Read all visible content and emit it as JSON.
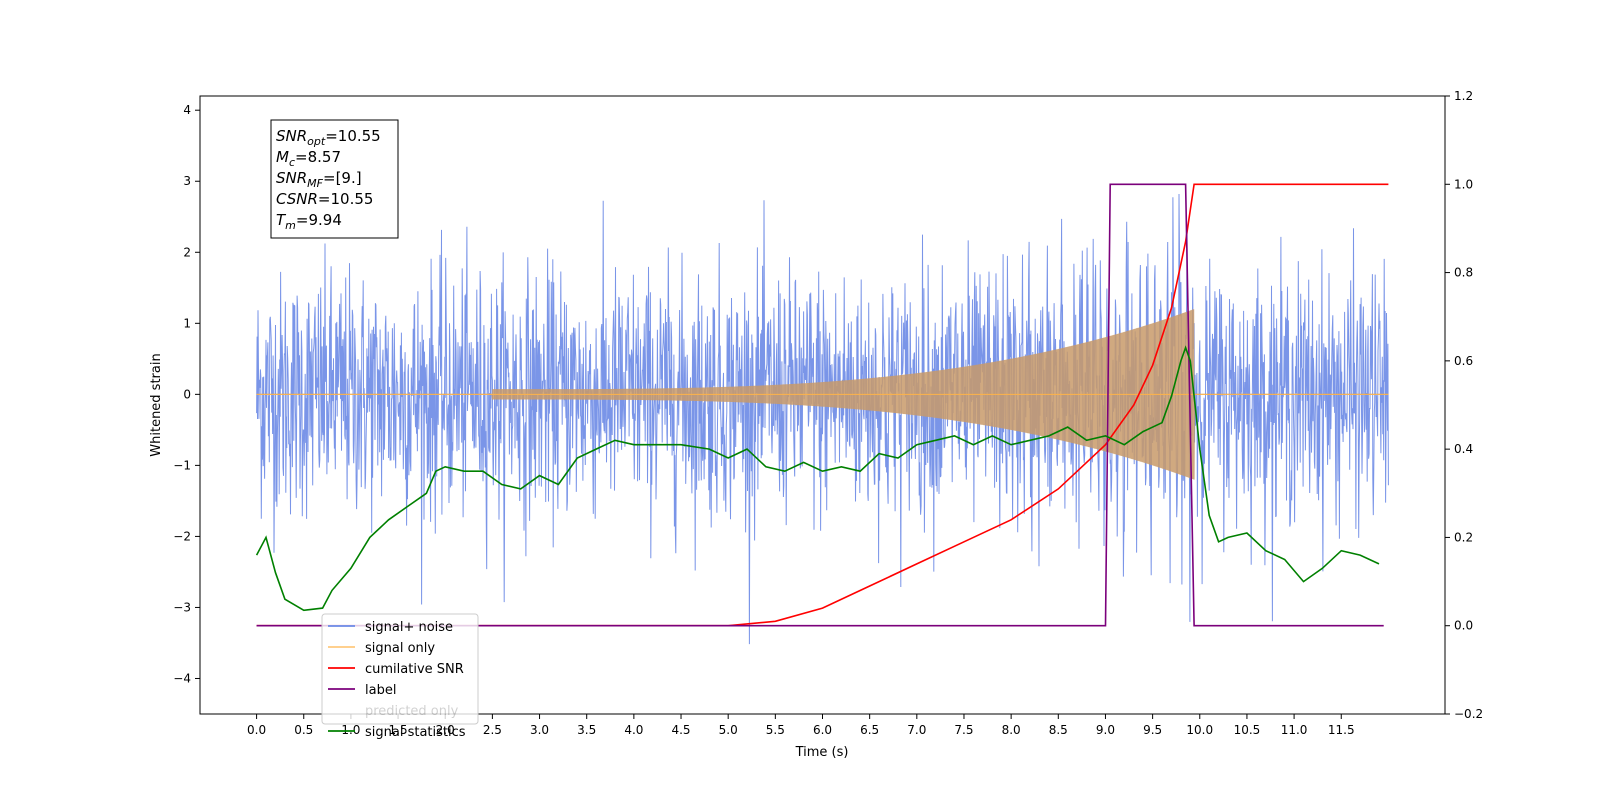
{
  "chart_data": {
    "type": "line",
    "xlabel": "Time (s)",
    "ylabel": "Whitened strain",
    "xlim": [
      -0.6,
      12.6
    ],
    "ylim_left": [
      -4.5,
      4.2
    ],
    "ylim_right": [
      -0.2,
      1.2
    ],
    "x_ticks": [
      "0.0",
      "0.5",
      "1.0",
      "1.5",
      "2.0",
      "2.5",
      "3.0",
      "3.5",
      "4.0",
      "4.5",
      "5.0",
      "5.5",
      "6.0",
      "6.5",
      "7.0",
      "7.5",
      "8.0",
      "8.5",
      "9.0",
      "9.5",
      "10.0",
      "10.5",
      "11.0",
      "11.5"
    ],
    "y_ticks_left": [
      "4",
      "3",
      "2",
      "1",
      "0",
      "−1",
      "−2",
      "−3",
      "−4"
    ],
    "y_ticks_right": [
      "1.2",
      "1.0",
      "0.8",
      "0.6",
      "0.4",
      "0.2",
      "0.0",
      "−0.2"
    ],
    "grid": false,
    "legend_position": "lower-left",
    "annotation": {
      "lines": [
        {
          "label_main": "SNR",
          "label_sub": "opt",
          "value": "=10.55"
        },
        {
          "label_main": "M",
          "label_sub": "c",
          "value": "=8.57"
        },
        {
          "label_main": "SNR",
          "label_sub": "MF",
          "value": "=[9.]"
        },
        {
          "label_main": "CSNR",
          "label_sub": "",
          "value": "=10.55"
        },
        {
          "label_main": "T",
          "label_sub": "m",
          "value": "=9.94"
        }
      ]
    },
    "series": [
      {
        "name": "signal+ noise",
        "color": "#6b8ae6",
        "axis": "left",
        "noise_sigma": 0.85,
        "x_range": [
          0.0,
          12.0
        ],
        "chirp_end": 9.94,
        "chirp_peak_amplitude": 1.2
      },
      {
        "name": "signal only",
        "color": "#ffb347",
        "axis": "left",
        "x_range": [
          0.0,
          12.0
        ],
        "chirp_start": 2.5,
        "chirp_end": 9.94,
        "chirp_peak_amplitude": 1.2
      },
      {
        "name": "cumilative SNR",
        "color": "#ff0000",
        "axis": "right",
        "points": [
          [
            0,
            0
          ],
          [
            5.0,
            0
          ],
          [
            5.5,
            0.01
          ],
          [
            6.0,
            0.04
          ],
          [
            6.5,
            0.09
          ],
          [
            7.0,
            0.14
          ],
          [
            7.5,
            0.19
          ],
          [
            8.0,
            0.24
          ],
          [
            8.5,
            0.31
          ],
          [
            9.0,
            0.41
          ],
          [
            9.3,
            0.5
          ],
          [
            9.5,
            0.59
          ],
          [
            9.7,
            0.72
          ],
          [
            9.85,
            0.87
          ],
          [
            9.94,
            1.0
          ],
          [
            12.0,
            1.0
          ]
        ]
      },
      {
        "name": "label",
        "color": "#7b007b",
        "axis": "right",
        "points": [
          [
            0,
            0
          ],
          [
            9.0,
            0
          ],
          [
            9.05,
            1.0
          ],
          [
            9.85,
            1.0
          ],
          [
            9.94,
            0
          ],
          [
            11.95,
            0
          ]
        ]
      },
      {
        "name": "predicted only",
        "color": "#7b007b",
        "axis": "right",
        "hidden_line": true
      },
      {
        "name": "signal statistics",
        "color": "#008000",
        "axis": "right",
        "points": [
          [
            0,
            0.16
          ],
          [
            0.1,
            0.2
          ],
          [
            0.2,
            0.12
          ],
          [
            0.3,
            0.06
          ],
          [
            0.5,
            0.035
          ],
          [
            0.7,
            0.04
          ],
          [
            0.8,
            0.08
          ],
          [
            1.0,
            0.13
          ],
          [
            1.2,
            0.2
          ],
          [
            1.4,
            0.24
          ],
          [
            1.6,
            0.27
          ],
          [
            1.8,
            0.3
          ],
          [
            1.9,
            0.35
          ],
          [
            2.0,
            0.36
          ],
          [
            2.2,
            0.35
          ],
          [
            2.4,
            0.35
          ],
          [
            2.6,
            0.32
          ],
          [
            2.8,
            0.31
          ],
          [
            3.0,
            0.34
          ],
          [
            3.2,
            0.32
          ],
          [
            3.4,
            0.38
          ],
          [
            3.6,
            0.4
          ],
          [
            3.8,
            0.42
          ],
          [
            4.0,
            0.41
          ],
          [
            4.2,
            0.41
          ],
          [
            4.5,
            0.41
          ],
          [
            4.8,
            0.4
          ],
          [
            5.0,
            0.38
          ],
          [
            5.2,
            0.4
          ],
          [
            5.4,
            0.36
          ],
          [
            5.6,
            0.35
          ],
          [
            5.8,
            0.37
          ],
          [
            6.0,
            0.35
          ],
          [
            6.2,
            0.36
          ],
          [
            6.4,
            0.35
          ],
          [
            6.6,
            0.39
          ],
          [
            6.8,
            0.38
          ],
          [
            7.0,
            0.41
          ],
          [
            7.2,
            0.42
          ],
          [
            7.4,
            0.43
          ],
          [
            7.6,
            0.41
          ],
          [
            7.8,
            0.43
          ],
          [
            8.0,
            0.41
          ],
          [
            8.2,
            0.42
          ],
          [
            8.4,
            0.43
          ],
          [
            8.6,
            0.45
          ],
          [
            8.8,
            0.42
          ],
          [
            9.0,
            0.43
          ],
          [
            9.2,
            0.41
          ],
          [
            9.4,
            0.44
          ],
          [
            9.6,
            0.46
          ],
          [
            9.7,
            0.52
          ],
          [
            9.8,
            0.6
          ],
          [
            9.85,
            0.63
          ],
          [
            9.9,
            0.6
          ],
          [
            10.0,
            0.4
          ],
          [
            10.1,
            0.25
          ],
          [
            10.2,
            0.19
          ],
          [
            10.3,
            0.2
          ],
          [
            10.5,
            0.21
          ],
          [
            10.7,
            0.17
          ],
          [
            10.9,
            0.15
          ],
          [
            11.1,
            0.1
          ],
          [
            11.3,
            0.13
          ],
          [
            11.5,
            0.17
          ],
          [
            11.7,
            0.16
          ],
          [
            11.9,
            0.14
          ]
        ]
      }
    ]
  }
}
